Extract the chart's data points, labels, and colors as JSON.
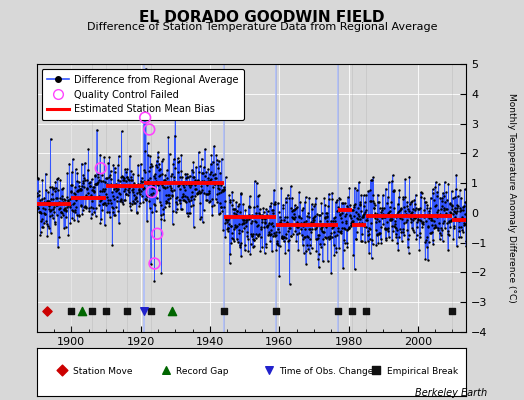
{
  "title": "EL DORADO GOODWIN FIELD",
  "subtitle": "Difference of Station Temperature Data from Regional Average",
  "ylabel": "Monthly Temperature Anomaly Difference (°C)",
  "credit": "Berkeley Earth",
  "xlim": [
    1890,
    2014
  ],
  "ylim": [
    -4,
    5
  ],
  "yticks": [
    -4,
    -3,
    -2,
    -1,
    0,
    1,
    2,
    3,
    4,
    5
  ],
  "xticks": [
    1900,
    1920,
    1940,
    1960,
    1980,
    2000
  ],
  "bg_color": "#d8d8d8",
  "plot_bg_color": "#d8d8d8",
  "line_color": "#3355ff",
  "dot_color": "#000000",
  "bias_color": "#ff0000",
  "qc_color": "#ff44ff",
  "station_move_color": "#cc0000",
  "record_gap_color": "#006600",
  "tobs_color": "#2222cc",
  "empirical_color": "#111111",
  "vert_line_color": "#aabbff",
  "seed": 42,
  "start_year": 1890,
  "end_year": 2013,
  "station_moves": [
    1893
  ],
  "record_gaps": [
    1903,
    1929
  ],
  "tobs_changes": [
    1921
  ],
  "empirical_breaks": [
    1900,
    1906,
    1910,
    1916,
    1923,
    1944,
    1959,
    1977,
    1981,
    1985,
    2010
  ],
  "vert_lines": [
    1921,
    1944,
    1959,
    1977
  ],
  "qc_failed": [
    [
      1908.5,
      1.5
    ],
    [
      1921.3,
      3.2
    ],
    [
      1922.5,
      2.8
    ],
    [
      1923.2,
      0.7
    ],
    [
      1924.0,
      -1.7
    ],
    [
      1924.8,
      -0.7
    ]
  ],
  "bias_segments": [
    {
      "start": 1890,
      "end": 1900,
      "value": 0.3
    },
    {
      "start": 1900,
      "end": 1910,
      "value": 0.5
    },
    {
      "start": 1910,
      "end": 1921,
      "value": 0.9
    },
    {
      "start": 1921,
      "end": 1944,
      "value": 1.0
    },
    {
      "start": 1944,
      "end": 1959,
      "value": -0.15
    },
    {
      "start": 1959,
      "end": 1977,
      "value": -0.4
    },
    {
      "start": 1977,
      "end": 1981,
      "value": 0.1
    },
    {
      "start": 1981,
      "end": 1985,
      "value": -0.4
    },
    {
      "start": 1985,
      "end": 2010,
      "value": -0.1
    },
    {
      "start": 2010,
      "end": 2014,
      "value": -0.25
    }
  ]
}
